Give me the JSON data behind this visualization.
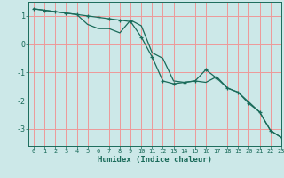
{
  "xlabel": "Humidex (Indice chaleur)",
  "background_color": "#cce8e8",
  "grid_color": "#ee9999",
  "line_color": "#1a6b5a",
  "xlim": [
    -0.5,
    23
  ],
  "ylim": [
    -3.6,
    1.5
  ],
  "xticks": [
    0,
    1,
    2,
    3,
    4,
    5,
    6,
    7,
    8,
    9,
    10,
    11,
    12,
    13,
    14,
    15,
    16,
    17,
    18,
    19,
    20,
    21,
    22,
    23
  ],
  "yticks": [
    -3,
    -2,
    -1,
    0,
    1
  ],
  "line1_x": [
    0,
    1,
    2,
    3,
    4,
    5,
    6,
    7,
    8,
    9,
    10,
    11,
    12,
    13,
    14,
    15,
    16,
    17,
    18,
    19,
    20,
    21,
    22,
    23
  ],
  "line1_y": [
    1.25,
    1.2,
    1.15,
    1.1,
    1.05,
    0.7,
    0.55,
    0.55,
    0.4,
    0.85,
    0.65,
    -0.3,
    -0.5,
    -1.3,
    -1.35,
    -1.3,
    -1.35,
    -1.15,
    -1.55,
    -1.7,
    -2.05,
    -2.4,
    -3.05,
    -3.3
  ],
  "line2_x": [
    0,
    1,
    2,
    3,
    4,
    5,
    6,
    7,
    8,
    9,
    10,
    11,
    12,
    13,
    14,
    15,
    16,
    17,
    18,
    19,
    20,
    21,
    22,
    23
  ],
  "line2_y": [
    1.25,
    1.2,
    1.15,
    1.1,
    1.05,
    1.0,
    0.95,
    0.9,
    0.85,
    0.8,
    0.25,
    -0.45,
    -1.3,
    -1.4,
    -1.35,
    -1.3,
    -0.9,
    -1.2,
    -1.55,
    -1.7,
    -2.1,
    -2.4,
    -3.05,
    -3.3
  ]
}
